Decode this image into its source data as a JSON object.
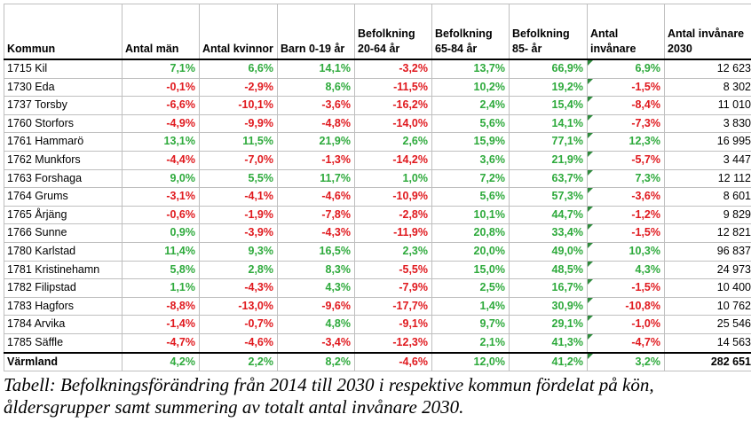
{
  "table": {
    "headers": [
      "Kommun",
      "Antal män",
      "Antal kvinnor",
      "Barn 0-19 år",
      "Befolkning 20-64 år",
      "Befolkning 65-84 år",
      "Befolkning 85- år",
      "Antal invånare",
      "Antal invånare 2030"
    ],
    "rows": [
      {
        "kommun": "1715 Kil",
        "cells": [
          "7,1%",
          "6,6%",
          "14,1%",
          "-3,2%",
          "13,7%",
          "66,9%",
          "6,9%"
        ],
        "total": "12 623"
      },
      {
        "kommun": "1730 Eda",
        "cells": [
          "-0,1%",
          "-2,9%",
          "8,6%",
          "-11,5%",
          "10,2%",
          "19,2%",
          "-1,5%"
        ],
        "total": "8 302"
      },
      {
        "kommun": "1737 Torsby",
        "cells": [
          "-6,6%",
          "-10,1%",
          "-3,6%",
          "-16,2%",
          "2,4%",
          "15,4%",
          "-8,4%"
        ],
        "total": "11 010"
      },
      {
        "kommun": "1760 Storfors",
        "cells": [
          "-4,9%",
          "-9,9%",
          "-4,8%",
          "-14,0%",
          "5,6%",
          "14,1%",
          "-7,3%"
        ],
        "total": "3 830"
      },
      {
        "kommun": "1761 Hammarö",
        "cells": [
          "13,1%",
          "11,5%",
          "21,9%",
          "2,6%",
          "15,9%",
          "77,1%",
          "12,3%"
        ],
        "total": "16 995"
      },
      {
        "kommun": "1762 Munkfors",
        "cells": [
          "-4,4%",
          "-7,0%",
          "-1,3%",
          "-14,2%",
          "3,6%",
          "21,9%",
          "-5,7%"
        ],
        "total": "3 447"
      },
      {
        "kommun": "1763 Forshaga",
        "cells": [
          "9,0%",
          "5,5%",
          "11,7%",
          "1,0%",
          "7,2%",
          "63,7%",
          "7,3%"
        ],
        "total": "12 112"
      },
      {
        "kommun": "1764 Grums",
        "cells": [
          "-3,1%",
          "-4,1%",
          "-4,6%",
          "-10,9%",
          "5,6%",
          "57,3%",
          "-3,6%"
        ],
        "total": "8 601"
      },
      {
        "kommun": "1765 Årjäng",
        "cells": [
          "-0,6%",
          "-1,9%",
          "-7,8%",
          "-2,8%",
          "10,1%",
          "44,7%",
          "-1,2%"
        ],
        "total": "9 829"
      },
      {
        "kommun": "1766 Sunne",
        "cells": [
          "0,9%",
          "-3,9%",
          "-4,3%",
          "-11,9%",
          "20,8%",
          "33,4%",
          "-1,5%"
        ],
        "total": "12 821"
      },
      {
        "kommun": "1780 Karlstad",
        "cells": [
          "11,4%",
          "9,3%",
          "16,5%",
          "2,3%",
          "20,0%",
          "49,0%",
          "10,3%"
        ],
        "total": "96 837"
      },
      {
        "kommun": "1781 Kristinehamn",
        "cells": [
          "5,8%",
          "2,8%",
          "8,3%",
          "-5,5%",
          "15,0%",
          "48,5%",
          "4,3%"
        ],
        "total": "24 973"
      },
      {
        "kommun": "1782 Filipstad",
        "cells": [
          "1,1%",
          "-4,3%",
          "4,3%",
          "-7,9%",
          "2,5%",
          "16,7%",
          "-1,5%"
        ],
        "total": "10 400"
      },
      {
        "kommun": "1783 Hagfors",
        "cells": [
          "-8,8%",
          "-13,0%",
          "-9,6%",
          "-17,7%",
          "1,4%",
          "30,9%",
          "-10,8%"
        ],
        "total": "10 762"
      },
      {
        "kommun": "1784 Arvika",
        "cells": [
          "-1,4%",
          "-0,7%",
          "4,8%",
          "-9,1%",
          "9,7%",
          "29,1%",
          "-1,0%"
        ],
        "total": "25 546"
      },
      {
        "kommun": "1785 Säffle",
        "cells": [
          "-4,7%",
          "-4,6%",
          "-3,4%",
          "-12,3%",
          "2,1%",
          "41,3%",
          "-4,7%"
        ],
        "total": "14 563"
      },
      {
        "kommun": "Värmland",
        "cells": [
          "4,2%",
          "2,2%",
          "8,2%",
          "-4,6%",
          "12,0%",
          "41,2%",
          "3,2%"
        ],
        "total": "282 651"
      }
    ]
  },
  "colors": {
    "positive": "#2eaa3c",
    "negative": "#e0191e",
    "marker": "#2e8b3c"
  },
  "caption": "Tabell: Befolkningsförändring från 2014 till 2030 i respektive kommun fördelat på kön, åldersgrupper samt summering av totalt antal invånare 2030."
}
